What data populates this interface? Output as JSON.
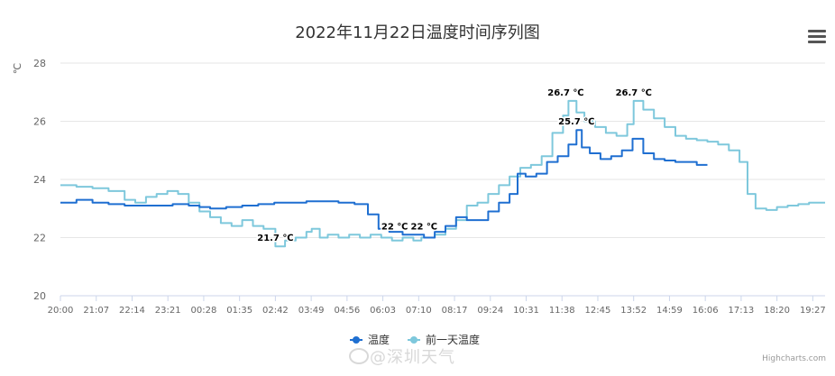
{
  "chart_data": {
    "type": "line",
    "title": "2022年11月22日温度时间序列图",
    "ylabel": "℃",
    "ylim": [
      20,
      28
    ],
    "yticks": [
      20,
      22,
      24,
      26,
      28
    ],
    "xticks": [
      "20:00",
      "21:07",
      "22:14",
      "23:21",
      "00:28",
      "01:35",
      "02:42",
      "03:49",
      "04:56",
      "06:03",
      "07:10",
      "08:17",
      "09:24",
      "10:31",
      "11:38",
      "12:45",
      "13:52",
      "14:59",
      "16:06",
      "17:13",
      "18:20",
      "19:27"
    ],
    "x_start": "20:00",
    "x_end": "19:50",
    "grid": true,
    "legend_position": "bottom-center",
    "series": [
      {
        "name": "温度",
        "color": "#1f6fd1",
        "points": [
          [
            "20:00",
            23.2
          ],
          [
            "20:30",
            23.3
          ],
          [
            "21:00",
            23.2
          ],
          [
            "21:30",
            23.15
          ],
          [
            "22:00",
            23.1
          ],
          [
            "22:30",
            23.1
          ],
          [
            "23:00",
            23.1
          ],
          [
            "23:30",
            23.15
          ],
          [
            "00:00",
            23.1
          ],
          [
            "00:20",
            23.05
          ],
          [
            "00:40",
            23.0
          ],
          [
            "01:10",
            23.05
          ],
          [
            "01:40",
            23.1
          ],
          [
            "02:10",
            23.15
          ],
          [
            "02:40",
            23.2
          ],
          [
            "03:10",
            23.2
          ],
          [
            "03:40",
            23.25
          ],
          [
            "04:10",
            23.25
          ],
          [
            "04:40",
            23.2
          ],
          [
            "05:10",
            23.15
          ],
          [
            "05:35",
            22.8
          ],
          [
            "05:55",
            22.3
          ],
          [
            "06:15",
            22.2
          ],
          [
            "06:40",
            22.1
          ],
          [
            "07:00",
            22.1
          ],
          [
            "07:20",
            22.0
          ],
          [
            "07:40",
            22.2
          ],
          [
            "08:00",
            22.4
          ],
          [
            "08:20",
            22.7
          ],
          [
            "08:40",
            22.6
          ],
          [
            "09:00",
            22.6
          ],
          [
            "09:20",
            22.9
          ],
          [
            "09:40",
            23.2
          ],
          [
            "10:00",
            23.5
          ],
          [
            "10:15",
            24.2
          ],
          [
            "10:30",
            24.1
          ],
          [
            "10:50",
            24.2
          ],
          [
            "11:10",
            24.6
          ],
          [
            "11:30",
            24.8
          ],
          [
            "11:50",
            25.2
          ],
          [
            "12:05",
            25.7
          ],
          [
            "12:15",
            25.1
          ],
          [
            "12:30",
            24.9
          ],
          [
            "12:50",
            24.7
          ],
          [
            "13:10",
            24.8
          ],
          [
            "13:30",
            25.0
          ],
          [
            "13:50",
            25.4
          ],
          [
            "14:10",
            24.9
          ],
          [
            "14:30",
            24.7
          ],
          [
            "14:50",
            24.65
          ],
          [
            "15:10",
            24.6
          ],
          [
            "15:30",
            24.6
          ],
          [
            "15:50",
            24.5
          ],
          [
            "16:10",
            24.5
          ]
        ]
      },
      {
        "name": "前一天温度",
        "color": "#7ec8dc",
        "points": [
          [
            "20:00",
            23.8
          ],
          [
            "20:30",
            23.75
          ],
          [
            "21:00",
            23.7
          ],
          [
            "21:30",
            23.6
          ],
          [
            "22:00",
            23.3
          ],
          [
            "22:20",
            23.2
          ],
          [
            "22:40",
            23.4
          ],
          [
            "23:00",
            23.5
          ],
          [
            "23:20",
            23.6
          ],
          [
            "23:40",
            23.5
          ],
          [
            "00:00",
            23.2
          ],
          [
            "00:20",
            22.9
          ],
          [
            "00:40",
            22.7
          ],
          [
            "01:00",
            22.5
          ],
          [
            "01:20",
            22.4
          ],
          [
            "01:40",
            22.6
          ],
          [
            "02:00",
            22.4
          ],
          [
            "02:20",
            22.3
          ],
          [
            "02:42",
            21.7
          ],
          [
            "03:00",
            21.9
          ],
          [
            "03:20",
            22.0
          ],
          [
            "03:40",
            22.2
          ],
          [
            "03:50",
            22.3
          ],
          [
            "04:05",
            22.0
          ],
          [
            "04:20",
            22.1
          ],
          [
            "04:40",
            22.0
          ],
          [
            "05:00",
            22.1
          ],
          [
            "05:20",
            22.0
          ],
          [
            "05:40",
            22.1
          ],
          [
            "06:00",
            22.0
          ],
          [
            "06:20",
            21.9
          ],
          [
            "06:40",
            22.0
          ],
          [
            "07:00",
            21.9
          ],
          [
            "07:15",
            22.0
          ],
          [
            "07:40",
            22.1
          ],
          [
            "08:00",
            22.3
          ],
          [
            "08:20",
            22.6
          ],
          [
            "08:40",
            23.1
          ],
          [
            "09:00",
            23.2
          ],
          [
            "09:20",
            23.5
          ],
          [
            "09:40",
            23.8
          ],
          [
            "10:00",
            24.1
          ],
          [
            "10:20",
            24.4
          ],
          [
            "10:40",
            24.5
          ],
          [
            "11:00",
            24.8
          ],
          [
            "11:20",
            25.6
          ],
          [
            "11:40",
            26.2
          ],
          [
            "11:50",
            26.7
          ],
          [
            "12:05",
            26.3
          ],
          [
            "12:20",
            26.0
          ],
          [
            "12:40",
            25.8
          ],
          [
            "13:00",
            25.6
          ],
          [
            "13:20",
            25.5
          ],
          [
            "13:40",
            25.9
          ],
          [
            "13:52",
            26.7
          ],
          [
            "14:10",
            26.4
          ],
          [
            "14:30",
            26.1
          ],
          [
            "14:50",
            25.8
          ],
          [
            "15:10",
            25.5
          ],
          [
            "15:30",
            25.4
          ],
          [
            "15:50",
            25.35
          ],
          [
            "16:10",
            25.3
          ],
          [
            "16:30",
            25.2
          ],
          [
            "16:50",
            25.0
          ],
          [
            "17:10",
            24.6
          ],
          [
            "17:25",
            23.5
          ],
          [
            "17:40",
            23.0
          ],
          [
            "18:00",
            22.95
          ],
          [
            "18:20",
            23.05
          ],
          [
            "18:40",
            23.1
          ],
          [
            "19:00",
            23.15
          ],
          [
            "19:20",
            23.2
          ],
          [
            "19:40",
            23.2
          ],
          [
            "19:50",
            23.2
          ]
        ]
      }
    ],
    "annotations": [
      {
        "time": "02:42",
        "value": 21.7,
        "text": "21.7 ℃"
      },
      {
        "time": "06:25",
        "value": 22.1,
        "text": "22 ℃"
      },
      {
        "time": "07:20",
        "value": 22.1,
        "text": "22 ℃"
      },
      {
        "time": "11:45",
        "value": 26.7,
        "text": "26.7 ℃"
      },
      {
        "time": "13:52",
        "value": 26.7,
        "text": "26.7 ℃"
      },
      {
        "time": "12:05",
        "value": 25.7,
        "text": "25.7 ℃"
      }
    ]
  },
  "credits": "Highcharts.com",
  "watermark": "@深圳天气"
}
